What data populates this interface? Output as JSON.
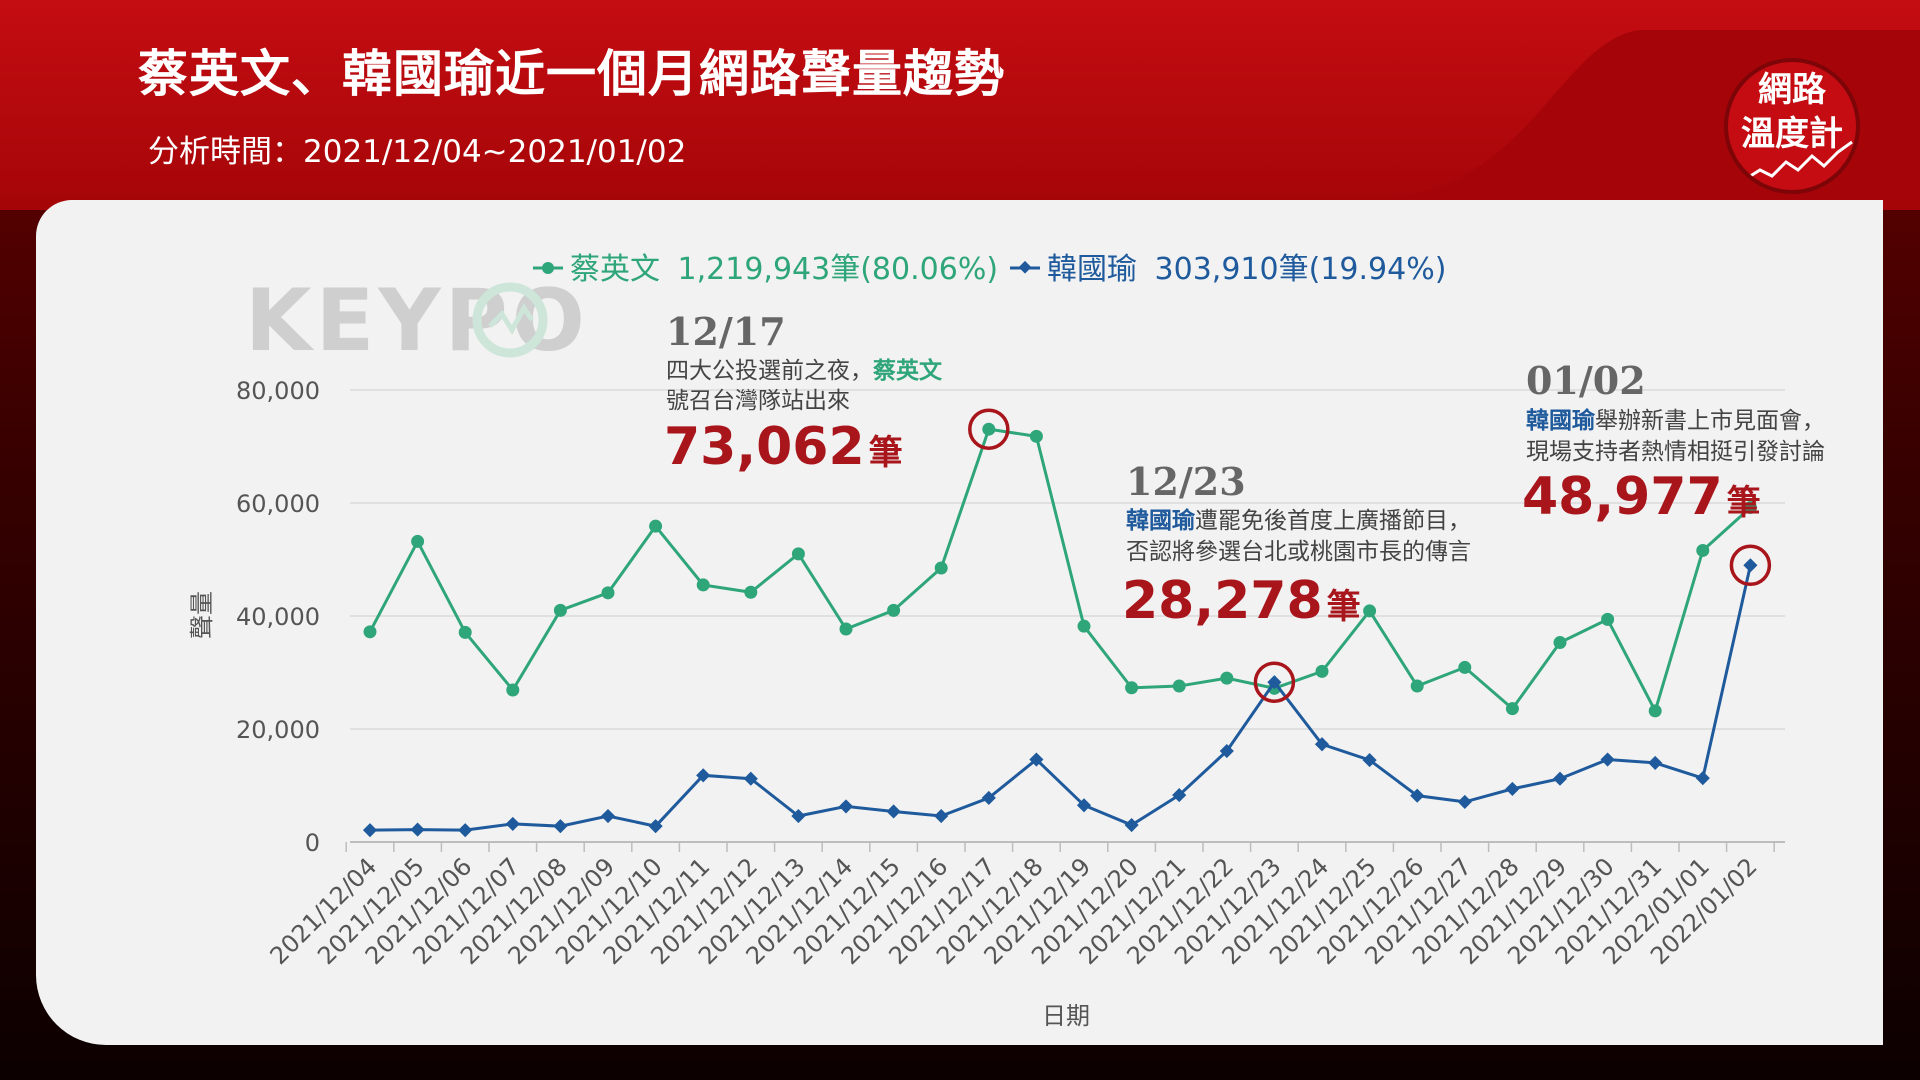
{
  "header": {
    "title": "蔡英文、韓國瑜近一個月網路聲量趨勢",
    "subtitle": "分析時間：2021/12/04~2021/01/02"
  },
  "logo": {
    "line1": "網路",
    "line2": "溫度計"
  },
  "watermark": "KEYPO",
  "colors": {
    "tsai": "#2fa57a",
    "han": "#1f5a9c",
    "accent_red": "#a8151b",
    "header_red": "#c40d12"
  },
  "legend": [
    {
      "name": "蔡英文",
      "detail": "1,219,943筆(80.06%)"
    },
    {
      "name": "韓國瑜",
      "detail": "303,910筆(19.94%)"
    }
  ],
  "annotations": {
    "a1": {
      "date": "12/17",
      "line1_pre": "四大公投選前之夜，",
      "line1_name": "蔡英文",
      "line2": "號召台灣隊站出來",
      "value": "73,062",
      "unit": "筆"
    },
    "a2": {
      "date": "12/23",
      "line1_name": "韓國瑜",
      "line1_post": "遭罷免後首度上廣播節目，",
      "line2": "否認將參選台北或桃園市長的傳言",
      "value": "28,278",
      "unit": "筆"
    },
    "a3": {
      "date": "01/02",
      "line1_name": "韓國瑜",
      "line1_post": "舉辦新書上市見面會，",
      "line2": "現場支持者熱情相挺引發討論",
      "value": "48,977",
      "unit": "筆"
    }
  },
  "chart_data": {
    "type": "line",
    "title": "蔡英文、韓國瑜近一個月網路聲量趨勢",
    "xlabel": "日期",
    "ylabel": "聲量",
    "ylim": [
      0,
      80000
    ],
    "yticks": [
      0,
      20000,
      40000,
      60000,
      80000
    ],
    "ytick_labels": [
      "0",
      "20,000",
      "40,000",
      "60,000",
      "80,000"
    ],
    "grid": true,
    "legend_position": "top",
    "categories": [
      "2021/12/04",
      "2021/12/05",
      "2021/12/06",
      "2021/12/07",
      "2021/12/08",
      "2021/12/09",
      "2021/12/10",
      "2021/12/11",
      "2021/12/12",
      "2021/12/13",
      "2021/12/14",
      "2021/12/15",
      "2021/12/16",
      "2021/12/17",
      "2021/12/18",
      "2021/12/19",
      "2021/12/20",
      "2021/12/21",
      "2021/12/22",
      "2021/12/23",
      "2021/12/24",
      "2021/12/25",
      "2021/12/26",
      "2021/12/27",
      "2021/12/28",
      "2021/12/29",
      "2021/12/30",
      "2021/12/31",
      "2022/01/01",
      "2022/01/02"
    ],
    "series": [
      {
        "name": "蔡英文",
        "color": "#2fa57a",
        "marker": "circle",
        "values": [
          37200,
          53200,
          37100,
          26900,
          41000,
          44100,
          55900,
          45500,
          44200,
          51000,
          37700,
          41000,
          48500,
          73062,
          71800,
          38200,
          27300,
          27600,
          29000,
          27200,
          30200,
          40900,
          27600,
          30900,
          23600,
          35300,
          39400,
          23200,
          51600,
          59200
        ]
      },
      {
        "name": "韓國瑜",
        "color": "#1f5a9c",
        "marker": "diamond",
        "values": [
          2100,
          2200,
          2100,
          3200,
          2800,
          4600,
          2800,
          11800,
          11200,
          4600,
          6300,
          5400,
          4600,
          7800,
          14600,
          6500,
          3000,
          8300,
          16100,
          28278,
          17300,
          14500,
          8200,
          7100,
          9400,
          11200,
          14600,
          14000,
          11300,
          48977
        ]
      }
    ]
  }
}
